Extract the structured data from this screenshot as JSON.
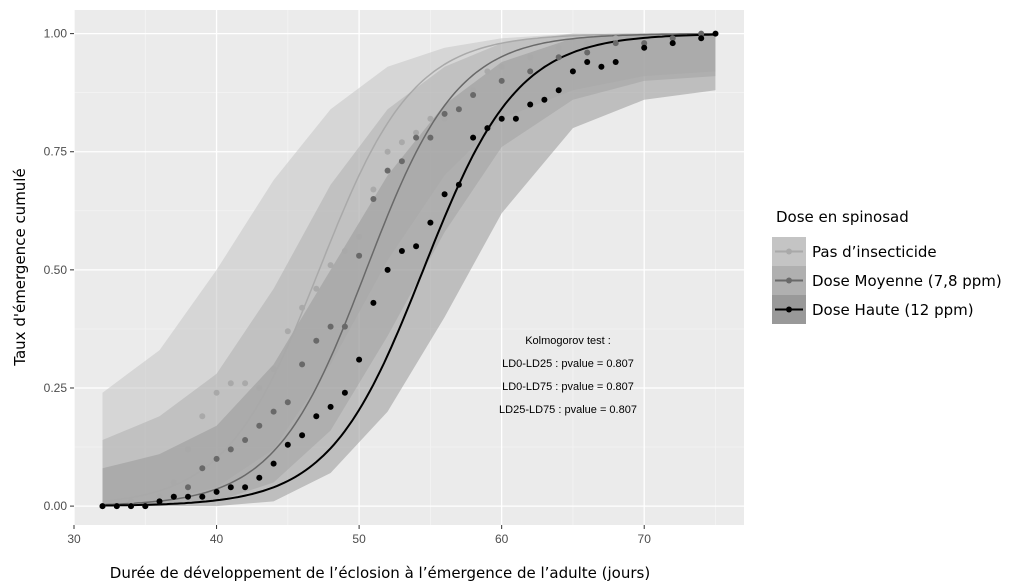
{
  "chart_data": {
    "type": "line",
    "xlabel": "Durée de développement de l’éclosion à l’émergence de l’adulte (jours)",
    "ylabel": "Taux d'émergence cumulé",
    "xlim": [
      30,
      77
    ],
    "ylim": [
      -0.04,
      1.05
    ],
    "x_ticks": [
      30,
      40,
      50,
      60,
      70
    ],
    "x_tick_labels": [
      "30",
      "40",
      "50",
      "60",
      "70"
    ],
    "y_ticks": [
      0,
      0.25,
      0.5,
      0.75,
      1
    ],
    "y_tick_labels": [
      "0.00",
      "0.25",
      "0.50",
      "0.75",
      "1.00"
    ],
    "grid": true,
    "legend": {
      "title": "Dose en spinosad",
      "position": "right",
      "entries": [
        "Pas d’insecticide",
        "Dose Moyenne (7,8 ppm)",
        "Dose Haute (12 ppm)"
      ]
    },
    "annotation": {
      "lines": [
        "Kolmogorov test :",
        "LD0-LD25 : pvalue = 0.807",
        "LD0-LD75 : pvalue = 0.807",
        "LD25-LD75 : pvalue = 0.807"
      ]
    },
    "series": [
      {
        "name": "Pas d’insecticide",
        "color": "#a9a9a9",
        "band_color": "#c4c4c4",
        "curve": {
          "midpoint": 47.2,
          "scale": 3.3,
          "x_start": 32,
          "x_end": 75
        },
        "band": [
          {
            "x": 32,
            "lower": 0.0,
            "upper": 0.24
          },
          {
            "x": 36,
            "lower": 0.01,
            "upper": 0.33
          },
          {
            "x": 40,
            "lower": 0.04,
            "upper": 0.5
          },
          {
            "x": 44,
            "lower": 0.12,
            "upper": 0.69
          },
          {
            "x": 48,
            "lower": 0.3,
            "upper": 0.84
          },
          {
            "x": 52,
            "lower": 0.52,
            "upper": 0.93
          },
          {
            "x": 56,
            "lower": 0.7,
            "upper": 0.97
          },
          {
            "x": 60,
            "lower": 0.82,
            "upper": 0.99
          },
          {
            "x": 65,
            "lower": 0.88,
            "upper": 1.0
          },
          {
            "x": 70,
            "lower": 0.91,
            "upper": 1.0
          },
          {
            "x": 75,
            "lower": 0.92,
            "upper": 1.0
          }
        ],
        "points": [
          {
            "x": 32,
            "y": 0.0
          },
          {
            "x": 34,
            "y": 0.01
          },
          {
            "x": 36,
            "y": 0.02
          },
          {
            "x": 37,
            "y": 0.05
          },
          {
            "x": 38,
            "y": 0.12
          },
          {
            "x": 39,
            "y": 0.19
          },
          {
            "x": 40,
            "y": 0.24
          },
          {
            "x": 41,
            "y": 0.26
          },
          {
            "x": 42,
            "y": 0.26
          },
          {
            "x": 43,
            "y": 0.25
          },
          {
            "x": 44,
            "y": 0.29
          },
          {
            "x": 45,
            "y": 0.37
          },
          {
            "x": 46,
            "y": 0.42
          },
          {
            "x": 47,
            "y": 0.46
          },
          {
            "x": 48,
            "y": 0.51
          },
          {
            "x": 49,
            "y": 0.54
          },
          {
            "x": 50,
            "y": 0.57
          },
          {
            "x": 51,
            "y": 0.67
          },
          {
            "x": 52,
            "y": 0.75
          },
          {
            "x": 53,
            "y": 0.77
          },
          {
            "x": 54,
            "y": 0.79
          },
          {
            "x": 55,
            "y": 0.82
          },
          {
            "x": 56,
            "y": 0.82
          },
          {
            "x": 57,
            "y": 0.84
          },
          {
            "x": 58,
            "y": 0.88
          },
          {
            "x": 59,
            "y": 0.92
          },
          {
            "x": 60,
            "y": 0.93
          },
          {
            "x": 62,
            "y": 0.95
          },
          {
            "x": 64,
            "y": 0.97
          },
          {
            "x": 66,
            "y": 0.98
          },
          {
            "x": 68,
            "y": 0.99
          }
        ]
      },
      {
        "name": "Dose Moyenne (7,8 ppm)",
        "color": "#696969",
        "band_color": "#b0b0b0",
        "curve": {
          "midpoint": 50.5,
          "scale": 3.2,
          "x_start": 32,
          "x_end": 75
        },
        "band": [
          {
            "x": 32,
            "lower": 0.0,
            "upper": 0.14
          },
          {
            "x": 36,
            "lower": 0.0,
            "upper": 0.19
          },
          {
            "x": 40,
            "lower": 0.01,
            "upper": 0.28
          },
          {
            "x": 44,
            "lower": 0.05,
            "upper": 0.46
          },
          {
            "x": 48,
            "lower": 0.16,
            "upper": 0.68
          },
          {
            "x": 52,
            "lower": 0.36,
            "upper": 0.84
          },
          {
            "x": 56,
            "lower": 0.58,
            "upper": 0.93
          },
          {
            "x": 60,
            "lower": 0.76,
            "upper": 0.98
          },
          {
            "x": 65,
            "lower": 0.86,
            "upper": 1.0
          },
          {
            "x": 70,
            "lower": 0.9,
            "upper": 1.0
          },
          {
            "x": 75,
            "lower": 0.91,
            "upper": 1.0
          }
        ],
        "points": [
          {
            "x": 32,
            "y": 0.0
          },
          {
            "x": 33,
            "y": 0.0
          },
          {
            "x": 34,
            "y": 0.0
          },
          {
            "x": 35,
            "y": 0.0
          },
          {
            "x": 36,
            "y": 0.01
          },
          {
            "x": 37,
            "y": 0.02
          },
          {
            "x": 38,
            "y": 0.04
          },
          {
            "x": 39,
            "y": 0.08
          },
          {
            "x": 40,
            "y": 0.1
          },
          {
            "x": 41,
            "y": 0.12
          },
          {
            "x": 42,
            "y": 0.14
          },
          {
            "x": 43,
            "y": 0.17
          },
          {
            "x": 44,
            "y": 0.2
          },
          {
            "x": 45,
            "y": 0.22
          },
          {
            "x": 46,
            "y": 0.3
          },
          {
            "x": 47,
            "y": 0.35
          },
          {
            "x": 48,
            "y": 0.38
          },
          {
            "x": 49,
            "y": 0.38
          },
          {
            "x": 50,
            "y": 0.53
          },
          {
            "x": 51,
            "y": 0.65
          },
          {
            "x": 52,
            "y": 0.71
          },
          {
            "x": 53,
            "y": 0.73
          },
          {
            "x": 54,
            "y": 0.78
          },
          {
            "x": 55,
            "y": 0.78
          },
          {
            "x": 56,
            "y": 0.83
          },
          {
            "x": 57,
            "y": 0.84
          },
          {
            "x": 58,
            "y": 0.87
          },
          {
            "x": 60,
            "y": 0.9
          },
          {
            "x": 62,
            "y": 0.92
          },
          {
            "x": 64,
            "y": 0.95
          },
          {
            "x": 66,
            "y": 0.96
          },
          {
            "x": 68,
            "y": 0.98
          },
          {
            "x": 70,
            "y": 0.98
          },
          {
            "x": 72,
            "y": 0.99
          },
          {
            "x": 74,
            "y": 1.0
          }
        ]
      },
      {
        "name": "Dose Haute (12 ppm)",
        "color": "#000000",
        "band_color": "#999999",
        "curve": {
          "midpoint": 54.5,
          "scale": 3.3,
          "x_start": 32,
          "x_end": 75
        },
        "band": [
          {
            "x": 32,
            "lower": 0.0,
            "upper": 0.08
          },
          {
            "x": 36,
            "lower": 0.0,
            "upper": 0.11
          },
          {
            "x": 40,
            "lower": 0.0,
            "upper": 0.17
          },
          {
            "x": 44,
            "lower": 0.01,
            "upper": 0.3
          },
          {
            "x": 48,
            "lower": 0.07,
            "upper": 0.5
          },
          {
            "x": 52,
            "lower": 0.2,
            "upper": 0.7
          },
          {
            "x": 56,
            "lower": 0.4,
            "upper": 0.85
          },
          {
            "x": 60,
            "lower": 0.62,
            "upper": 0.94
          },
          {
            "x": 65,
            "lower": 0.8,
            "upper": 0.99
          },
          {
            "x": 70,
            "lower": 0.86,
            "upper": 1.0
          },
          {
            "x": 75,
            "lower": 0.88,
            "upper": 1.0
          }
        ],
        "points": [
          {
            "x": 32,
            "y": 0.0
          },
          {
            "x": 33,
            "y": 0.0
          },
          {
            "x": 34,
            "y": 0.0
          },
          {
            "x": 35,
            "y": 0.0
          },
          {
            "x": 36,
            "y": 0.01
          },
          {
            "x": 37,
            "y": 0.02
          },
          {
            "x": 38,
            "y": 0.02
          },
          {
            "x": 39,
            "y": 0.02
          },
          {
            "x": 40,
            "y": 0.03
          },
          {
            "x": 41,
            "y": 0.04
          },
          {
            "x": 42,
            "y": 0.04
          },
          {
            "x": 43,
            "y": 0.06
          },
          {
            "x": 44,
            "y": 0.09
          },
          {
            "x": 45,
            "y": 0.13
          },
          {
            "x": 46,
            "y": 0.15
          },
          {
            "x": 47,
            "y": 0.19
          },
          {
            "x": 48,
            "y": 0.21
          },
          {
            "x": 49,
            "y": 0.24
          },
          {
            "x": 50,
            "y": 0.31
          },
          {
            "x": 51,
            "y": 0.43
          },
          {
            "x": 52,
            "y": 0.5
          },
          {
            "x": 53,
            "y": 0.54
          },
          {
            "x": 54,
            "y": 0.55
          },
          {
            "x": 55,
            "y": 0.6
          },
          {
            "x": 56,
            "y": 0.66
          },
          {
            "x": 57,
            "y": 0.68
          },
          {
            "x": 58,
            "y": 0.78
          },
          {
            "x": 59,
            "y": 0.8
          },
          {
            "x": 60,
            "y": 0.82
          },
          {
            "x": 61,
            "y": 0.82
          },
          {
            "x": 62,
            "y": 0.85
          },
          {
            "x": 63,
            "y": 0.86
          },
          {
            "x": 64,
            "y": 0.88
          },
          {
            "x": 65,
            "y": 0.92
          },
          {
            "x": 66,
            "y": 0.94
          },
          {
            "x": 67,
            "y": 0.93
          },
          {
            "x": 68,
            "y": 0.94
          },
          {
            "x": 70,
            "y": 0.97
          },
          {
            "x": 72,
            "y": 0.98
          },
          {
            "x": 74,
            "y": 0.99
          },
          {
            "x": 75,
            "y": 1.0
          }
        ]
      }
    ]
  }
}
